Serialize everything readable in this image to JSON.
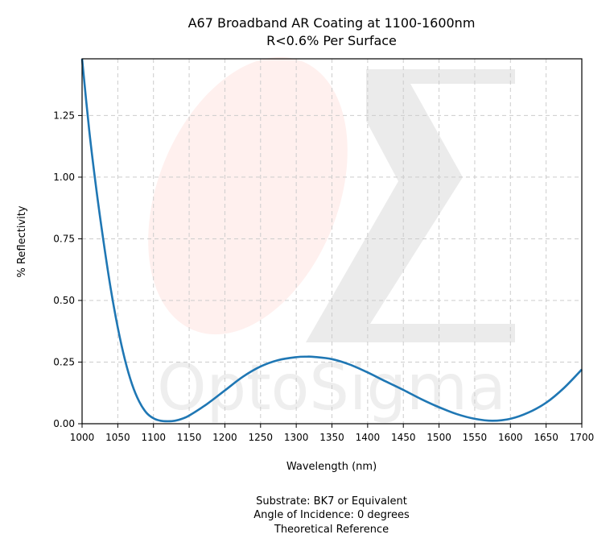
{
  "chart_data": {
    "type": "line",
    "title": "A67 Broadband AR Coating at 1100-1600nm",
    "subtitle": "R<0.6% Per Surface",
    "xlabel": "Wavelength (nm)",
    "ylabel": "% Reflectivity",
    "xlim": [
      1000,
      1700
    ],
    "ylim": [
      0,
      1.48
    ],
    "xticks": [
      1000,
      1050,
      1100,
      1150,
      1200,
      1250,
      1300,
      1350,
      1400,
      1450,
      1500,
      1550,
      1600,
      1650,
      1700
    ],
    "yticks": [
      0.0,
      0.25,
      0.5,
      0.75,
      1.0,
      1.25
    ],
    "xtick_labels": [
      "1000",
      "1050",
      "1100",
      "1150",
      "1200",
      "1250",
      "1300",
      "1350",
      "1400",
      "1450",
      "1500",
      "1550",
      "1600",
      "1650",
      "1700"
    ],
    "ytick_labels": [
      "0.00",
      "0.25",
      "0.50",
      "0.75",
      "1.00",
      "1.25"
    ],
    "grid": true,
    "series": [
      {
        "color": "#1f77b4",
        "x": [
          1000,
          1010,
          1020,
          1030,
          1040,
          1050,
          1060,
          1070,
          1080,
          1090,
          1100,
          1110,
          1120,
          1130,
          1140,
          1150,
          1175,
          1200,
          1225,
          1250,
          1275,
          1300,
          1315,
          1325,
          1350,
          1375,
          1400,
          1425,
          1450,
          1475,
          1500,
          1525,
          1550,
          1575,
          1600,
          1625,
          1650,
          1675,
          1700
        ],
        "y": [
          1.48,
          1.19,
          0.95,
          0.74,
          0.55,
          0.39,
          0.26,
          0.16,
          0.09,
          0.045,
          0.022,
          0.012,
          0.01,
          0.012,
          0.02,
          0.033,
          0.08,
          0.135,
          0.19,
          0.232,
          0.258,
          0.27,
          0.272,
          0.271,
          0.262,
          0.24,
          0.208,
          0.172,
          0.137,
          0.1,
          0.067,
          0.039,
          0.02,
          0.012,
          0.02,
          0.045,
          0.085,
          0.145,
          0.22
        ]
      }
    ],
    "annotations": [
      "Substrate: BK7 or Equivalent",
      "Angle of Incidence: 0 degrees",
      "Theoretical Reference"
    ]
  },
  "watermark": {
    "text": "OptoSigma",
    "glyph": "Σ",
    "text_color": "#eeeeee",
    "ellipse_color": "#fff0ee"
  }
}
